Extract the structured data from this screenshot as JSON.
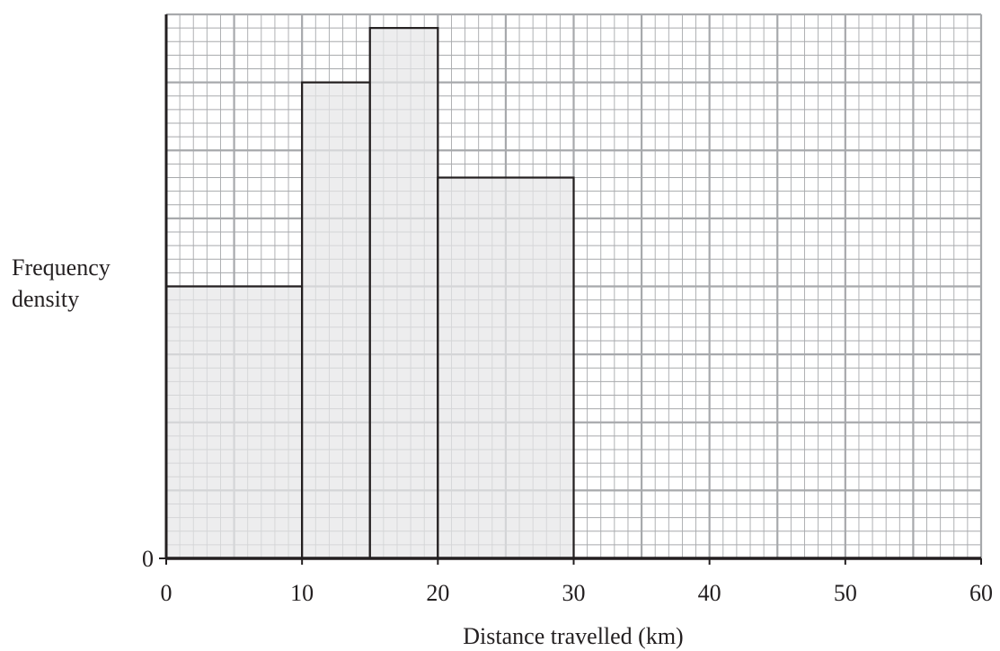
{
  "chart_data": {
    "type": "bar",
    "title": "",
    "xlabel": "Distance travelled (km)",
    "ylabel_lines": [
      "Frequency",
      "density"
    ],
    "xlim": [
      0,
      60
    ],
    "ylim": [
      0,
      8
    ],
    "x_ticks": [
      "0",
      "10",
      "20",
      "30",
      "40",
      "50",
      "60"
    ],
    "y_ticks": [
      "0"
    ],
    "y_tick_values": [
      0
    ],
    "grid": true,
    "bins": [
      {
        "x0": 0,
        "x1": 10,
        "height": 4
      },
      {
        "x0": 10,
        "x1": 15,
        "height": 7
      },
      {
        "x0": 15,
        "x1": 20,
        "height": 7.8
      },
      {
        "x0": 20,
        "x1": 30,
        "height": 5.6
      }
    ],
    "colors": {
      "bar_fill": "#e6e6e7",
      "bar_stroke": "#231f20",
      "grid_minor": "#a7a9ac",
      "grid_major": "#a7a9ac",
      "axis": "#231f20"
    }
  }
}
